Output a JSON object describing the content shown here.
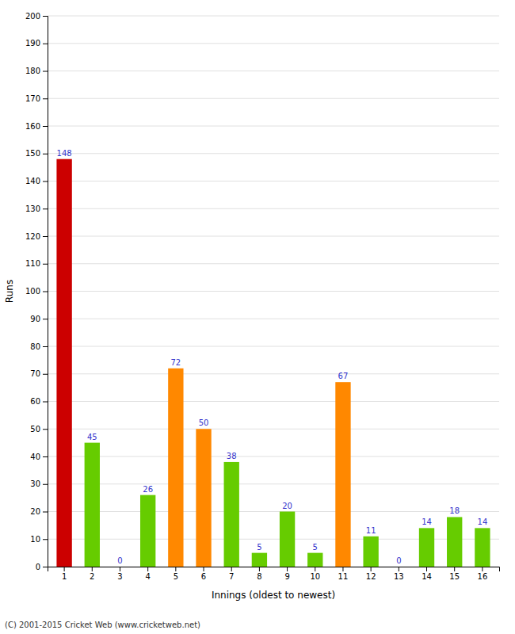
{
  "chart_data": {
    "type": "bar",
    "xlabel": "Innings (oldest to newest)",
    "ylabel": "Runs",
    "annotations": [
      "(C) 2001-2015 Cricket Web (www.cricketweb.net)"
    ],
    "categories": [
      "1",
      "2",
      "3",
      "4",
      "5",
      "6",
      "7",
      "8",
      "9",
      "10",
      "11",
      "12",
      "13",
      "14",
      "15",
      "16"
    ],
    "values": [
      148,
      45,
      0,
      26,
      72,
      50,
      38,
      5,
      20,
      5,
      67,
      11,
      0,
      14,
      18,
      14
    ],
    "colors": [
      "#cc0000",
      "#66cc00",
      "#66cc00",
      "#66cc00",
      "#ff8800",
      "#ff8800",
      "#66cc00",
      "#66cc00",
      "#66cc00",
      "#66cc00",
      "#ff8800",
      "#66cc00",
      "#66cc00",
      "#66cc00",
      "#66cc00",
      "#66cc00"
    ],
    "ylim": [
      0,
      200
    ],
    "yticks": [
      0,
      10,
      20,
      30,
      40,
      50,
      60,
      70,
      80,
      90,
      100,
      110,
      120,
      130,
      140,
      150,
      160,
      170,
      180,
      190,
      200
    ],
    "grid": true,
    "data_labels": true
  }
}
